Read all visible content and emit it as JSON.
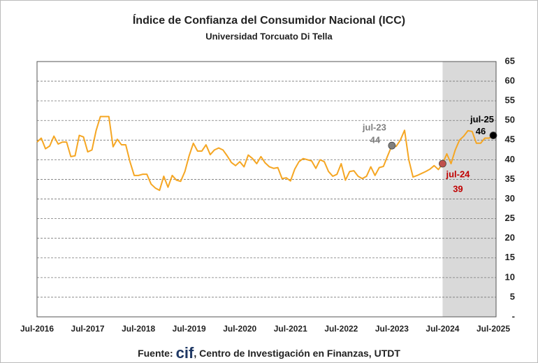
{
  "chart_data": {
    "type": "line",
    "title": "Índice de Confianza del Consumidor Nacional (ICC)",
    "subtitle": "Universidad Torcuato Di Tella",
    "categories": [
      "Jul-2016",
      null,
      null,
      null,
      null,
      null,
      null,
      null,
      null,
      null,
      null,
      null,
      "Jul-2017",
      null,
      null,
      null,
      null,
      null,
      null,
      null,
      null,
      null,
      null,
      null,
      "Jul-2018",
      null,
      null,
      null,
      null,
      null,
      null,
      null,
      null,
      null,
      null,
      null,
      "Jul-2019",
      null,
      null,
      null,
      null,
      null,
      null,
      null,
      null,
      null,
      null,
      null,
      "Jul-2020",
      null,
      null,
      null,
      null,
      null,
      null,
      null,
      null,
      null,
      null,
      null,
      "Jul-2021",
      null,
      null,
      null,
      null,
      null,
      null,
      null,
      null,
      null,
      null,
      null,
      "Jul-2022",
      null,
      null,
      null,
      null,
      null,
      null,
      null,
      null,
      null,
      null,
      null,
      "Jul-2023",
      null,
      null,
      null,
      null,
      null,
      null,
      null,
      null,
      null,
      null,
      null,
      "Jul-2024",
      null,
      null,
      null,
      null,
      null,
      null,
      null,
      null,
      null,
      null,
      null,
      "Jul-2025"
    ],
    "series": [
      {
        "name": "ICC",
        "color": "#f5a623",
        "values": [
          44.5,
          45.5,
          42.8,
          43.5,
          46,
          44,
          44.5,
          44.5,
          40.8,
          41,
          46.2,
          45.8,
          42,
          42.5,
          47.5,
          51,
          51,
          51,
          43.3,
          45.2,
          43.8,
          43.8,
          39.5,
          36,
          36,
          36.3,
          36.3,
          33.8,
          32.8,
          32.2,
          35.8,
          33,
          36,
          34.8,
          34.5,
          37,
          41,
          44.2,
          42.2,
          42.2,
          43.8,
          41.3,
          42.5,
          43,
          42.5,
          41,
          39.3,
          38.5,
          39.5,
          38.2,
          41.2,
          40.3,
          39,
          40.8,
          39.2,
          38.2,
          37.8,
          38,
          35.2,
          35.4,
          34.6,
          37.6,
          39.5,
          40.3,
          40,
          39.7,
          37.8,
          40,
          39.5,
          37,
          35.8,
          36.3,
          39,
          34.8,
          37,
          37.2,
          35.8,
          35.2,
          35.8,
          38.2,
          36,
          38,
          38.3,
          41,
          43.6,
          43.4,
          45,
          47.5,
          40,
          35.6,
          36,
          36.5,
          37,
          37.6,
          38.5,
          37.5,
          39,
          41.5,
          39,
          42.5,
          45,
          46,
          47.4,
          47.2,
          44.2,
          44.2,
          45.5,
          45.5,
          46.2
        ]
      }
    ],
    "ylim": [
      0,
      65
    ],
    "yticks": [
      {
        "value": 0,
        "label": "-"
      },
      5,
      10,
      15,
      20,
      25,
      30,
      35,
      40,
      45,
      50,
      55,
      60,
      65
    ],
    "grid": true,
    "shaded_region": {
      "from": 96,
      "to": 108,
      "color": "#d9d9d9"
    },
    "annotations": [
      {
        "label": "jul-23",
        "value": 44,
        "index": 84,
        "color": "#808080"
      },
      {
        "label": "jul-24",
        "value": 39,
        "index": 96,
        "color": "#c00000"
      },
      {
        "label": "jul-25",
        "value": 46,
        "index": 108,
        "color": "#000000"
      }
    ],
    "source": {
      "prefix": "Fuente:",
      "logo": "cif",
      "text": ", Centro de Investigación en Finanzas, UTDT"
    }
  }
}
